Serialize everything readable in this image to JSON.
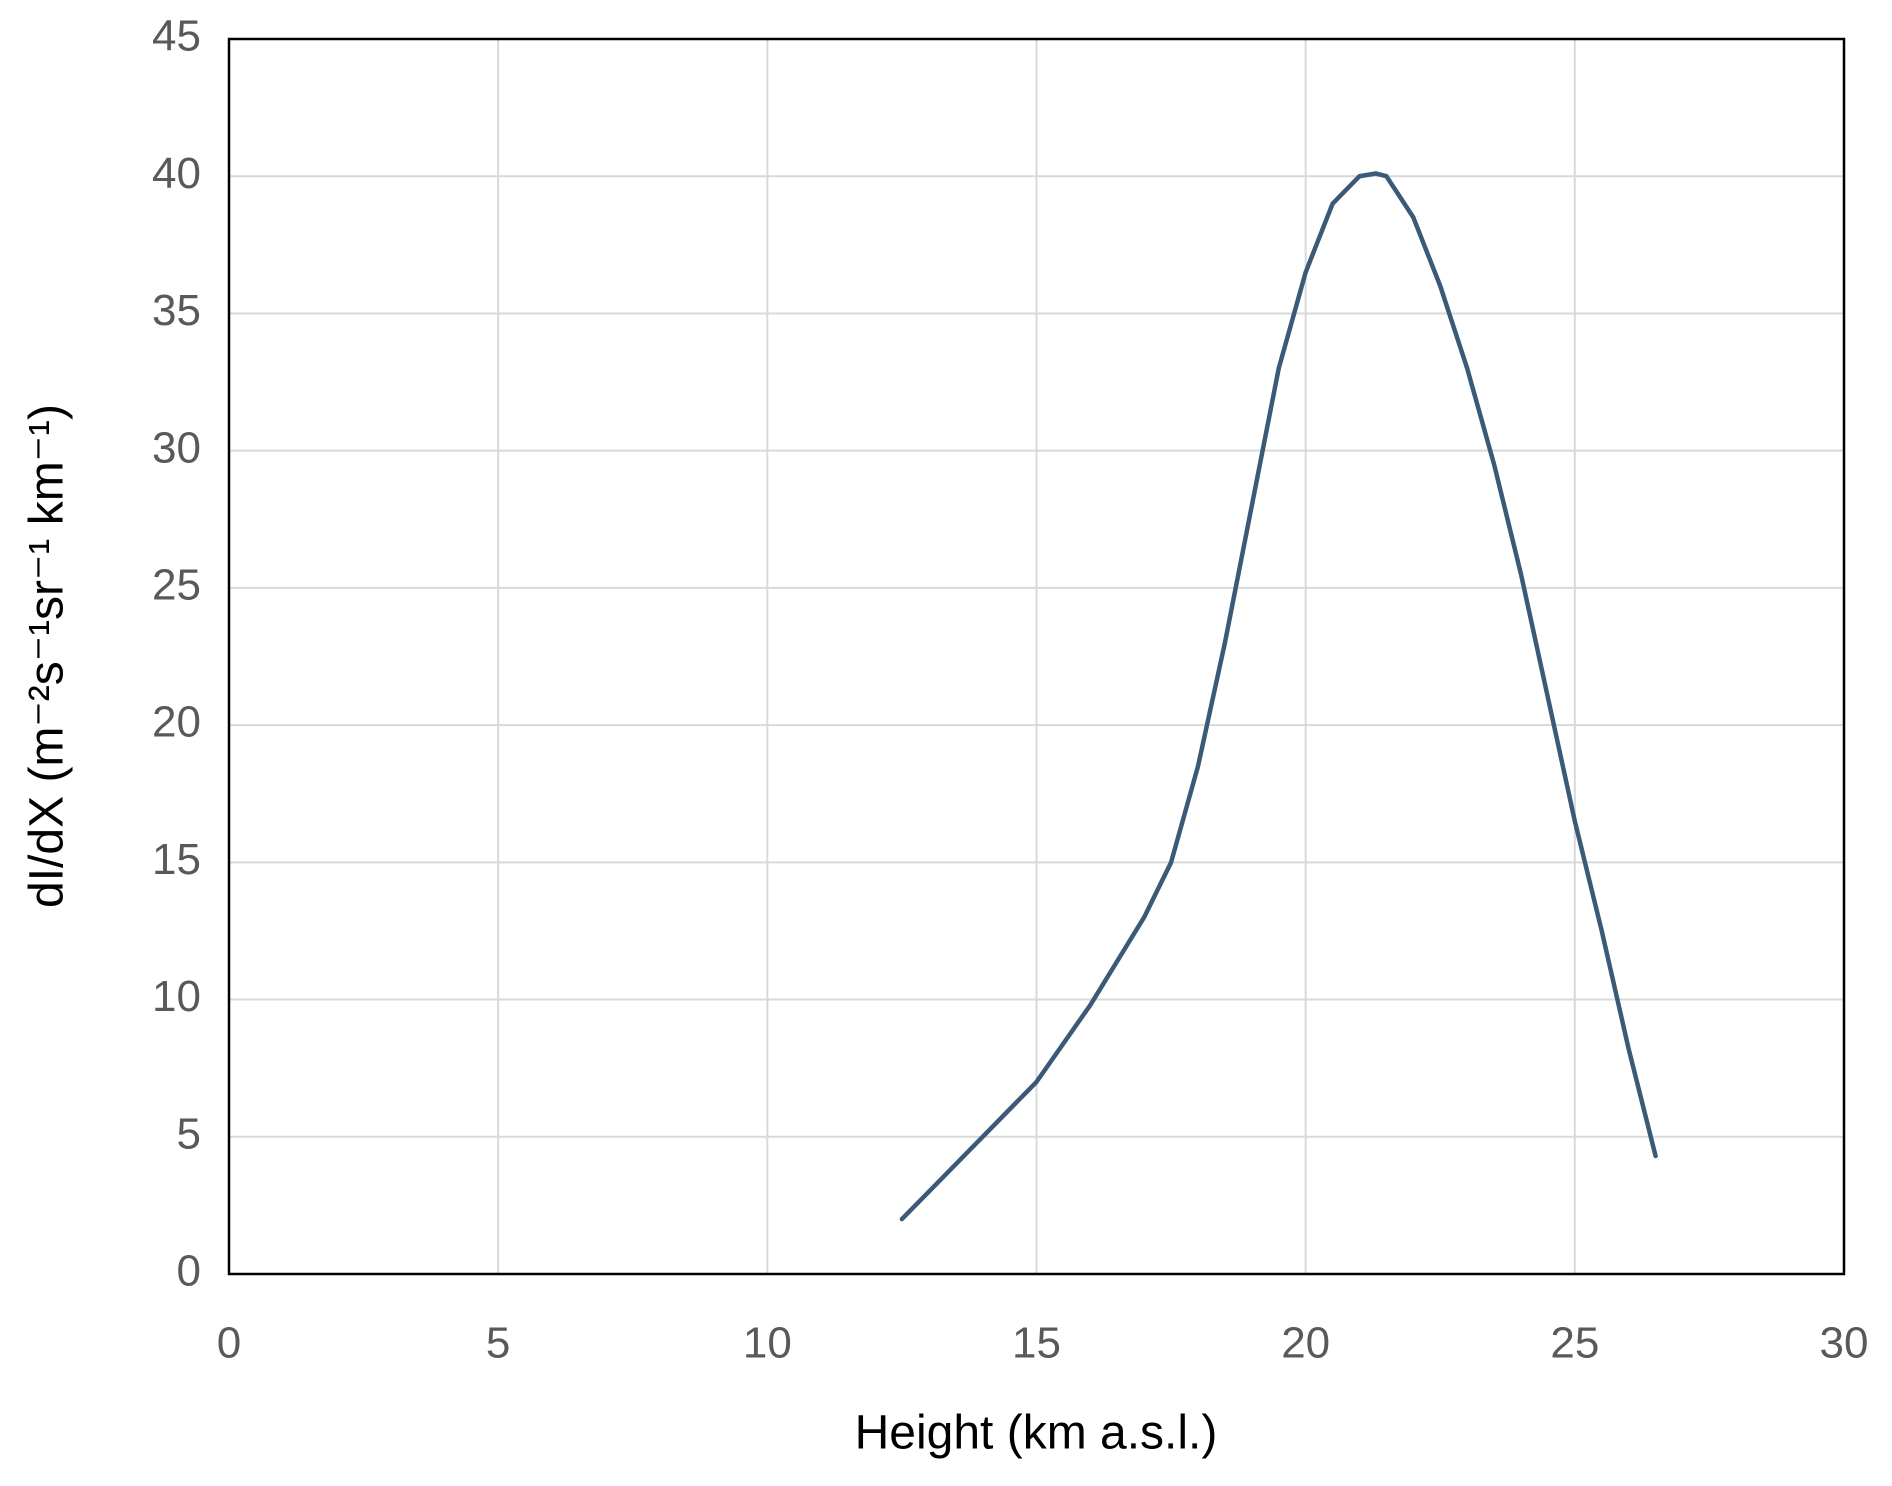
{
  "chart_data": {
    "type": "line",
    "x_label": "Height (km a.s.l.)",
    "y_label": "dI/dX (m⁻²s⁻¹sr⁻¹ km⁻¹)",
    "x": [
      12.5,
      13,
      14,
      15,
      16,
      17,
      17.5,
      18,
      18.5,
      19,
      19.5,
      20,
      20.5,
      21,
      21.3,
      21.5,
      22,
      22.5,
      23,
      23.5,
      24,
      24.5,
      25,
      25.5,
      26,
      26.5
    ],
    "series": [
      {
        "color": "#3b5a78",
        "values": [
          2.0,
          3.0,
          5.0,
          7.0,
          9.8,
          13.0,
          15.0,
          18.5,
          23.0,
          28.0,
          33.0,
          36.5,
          39.0,
          40.0,
          40.1,
          40.0,
          38.5,
          36.0,
          33.0,
          29.5,
          25.5,
          21.0,
          16.5,
          12.5,
          8.2,
          4.3
        ]
      }
    ],
    "xlim": [
      0,
      30
    ],
    "xticks": [
      0,
      5,
      10,
      15,
      20,
      25,
      30
    ],
    "ylim": [
      0,
      45
    ],
    "yticks": [
      0,
      5,
      10,
      15,
      20,
      25,
      30,
      35,
      40,
      45
    ],
    "grid": true
  }
}
